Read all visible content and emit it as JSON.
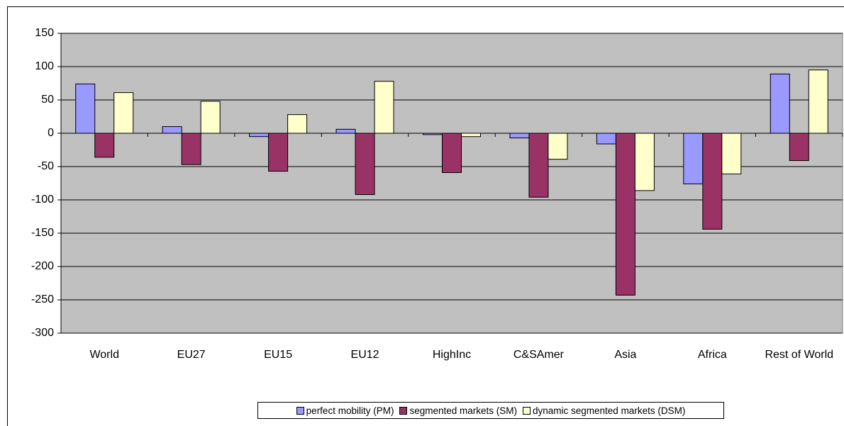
{
  "chart_data": {
    "type": "bar",
    "categories": [
      "World",
      "EU27",
      "EU15",
      "EU12",
      "HighInc",
      "C&SAmer",
      "Asia",
      "Africa",
      "Rest of World"
    ],
    "series": [
      {
        "name": "perfect mobility (PM)",
        "color": "#9999ff",
        "values": [
          74,
          10,
          -5,
          6,
          -2,
          -7,
          -16,
          -76,
          89
        ]
      },
      {
        "name": "segmented markets (SM)",
        "color": "#993366",
        "values": [
          -36,
          -47,
          -57,
          -92,
          -59,
          -96,
          -243,
          -144,
          -41
        ]
      },
      {
        "name": "dynamic segmented markets (DSM)",
        "color": "#ffffcc",
        "values": [
          61,
          48,
          28,
          78,
          -5,
          -39,
          -86,
          -61,
          95
        ]
      }
    ],
    "ylim": [
      -300,
      150
    ],
    "yticks": [
      -300,
      -250,
      -200,
      -150,
      -100,
      -50,
      0,
      50,
      100,
      150
    ],
    "grid": true,
    "legend": "bottom",
    "plot_background": "#c0c0c0"
  }
}
